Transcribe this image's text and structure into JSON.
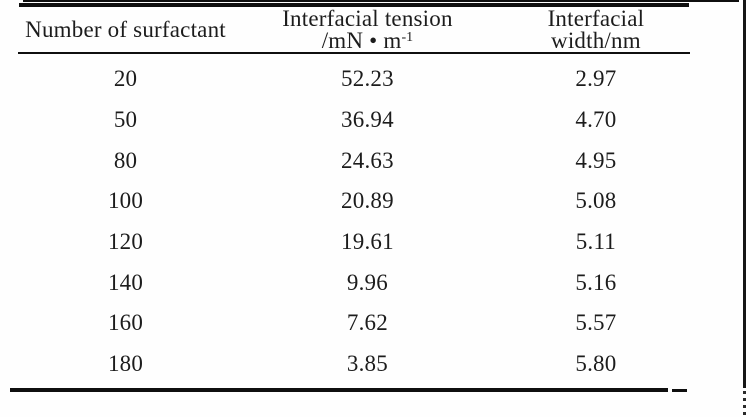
{
  "page": {
    "background": "#fefefe",
    "text_color": "#1c1c1c",
    "rule_color": "#0f0f0f"
  },
  "table": {
    "headers": {
      "col1": "Number of surfactant",
      "col2_line1": "Interfacial tension",
      "col2_unit_prefix": "/mN • m",
      "col2_unit_sup": "-1",
      "col3_line1": "Interfacial",
      "col3_line2": "width/nm"
    },
    "rows": [
      {
        "n": "20",
        "tension": "52.23",
        "width": "2.97"
      },
      {
        "n": "50",
        "tension": "36.94",
        "width": "4.70"
      },
      {
        "n": "80",
        "tension": "24.63",
        "width": "4.95"
      },
      {
        "n": "100",
        "tension": "20.89",
        "width": "5.08"
      },
      {
        "n": "120",
        "tension": "19.61",
        "width": "5.11"
      },
      {
        "n": "140",
        "tension": "9.96",
        "width": "5.16"
      },
      {
        "n": "160",
        "tension": "7.62",
        "width": "5.57"
      },
      {
        "n": "180",
        "tension": "3.85",
        "width": "5.80"
      }
    ]
  },
  "chart_data": {
    "type": "table",
    "columns": [
      "Number of surfactant",
      "Interfacial tension /mN·m⁻¹",
      "Interfacial width/nm"
    ],
    "rows": [
      [
        20,
        52.23,
        2.97
      ],
      [
        50,
        36.94,
        4.7
      ],
      [
        80,
        24.63,
        4.95
      ],
      [
        100,
        20.89,
        5.08
      ],
      [
        120,
        19.61,
        5.11
      ],
      [
        140,
        9.96,
        5.16
      ],
      [
        160,
        7.62,
        5.57
      ],
      [
        180,
        3.85,
        5.8
      ]
    ]
  }
}
